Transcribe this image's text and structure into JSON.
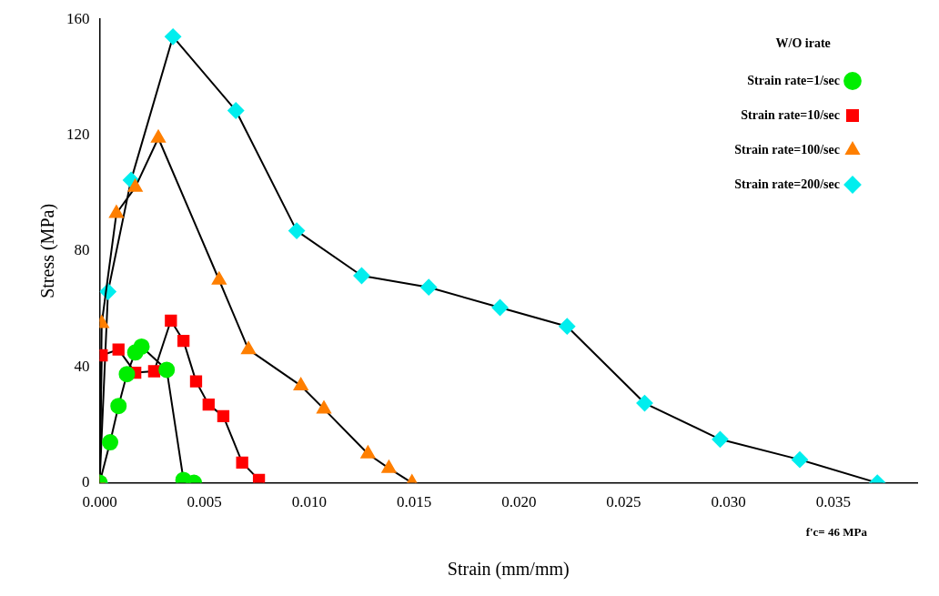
{
  "chart_data": {
    "type": "line",
    "xlabel": "Strain (mm/mm)",
    "ylabel": "Stress (MPa)",
    "legend_title": "W/O irate",
    "legend": "top right",
    "grid": false,
    "line_style": "solid",
    "xlim": [
      0,
      0.039
    ],
    "ylim": [
      0,
      160
    ],
    "xticks": [
      {
        "value": 0,
        "label": "0.000"
      },
      {
        "value": 0.005,
        "label": "0.005"
      },
      {
        "value": 0.01,
        "label": "0.010"
      },
      {
        "value": 0.015,
        "label": "0.015"
      },
      {
        "value": 0.02,
        "label": "0.020"
      },
      {
        "value": 0.025,
        "label": "0.025"
      },
      {
        "value": 0.03,
        "label": "0.030"
      },
      {
        "value": 0.035,
        "label": "0.035"
      }
    ],
    "yticks": [
      0,
      40,
      80,
      120,
      160
    ],
    "annotations": [
      "f'c= 46 MPa"
    ],
    "series": [
      {
        "name": "Strain rate=1/sec",
        "color": "#00ee00",
        "marker": "circle",
        "x": [
          0,
          0.0005,
          0.0009,
          0.0013,
          0.0017,
          0.002,
          0.0032,
          0.004,
          0.0045
        ],
        "values": [
          0,
          14,
          26.5,
          37.5,
          45,
          47,
          39,
          1,
          0
        ]
      },
      {
        "name": "Strain rate=10/sec",
        "color": "#ff0000",
        "marker": "square",
        "x": [
          0,
          0.0001,
          0.0009,
          0.0017,
          0.0026,
          0.0034,
          0.004,
          0.0046,
          0.0052,
          0.0059,
          0.0068,
          0.0076
        ],
        "values": [
          0,
          44,
          46,
          38,
          38.5,
          56,
          49,
          35,
          27,
          23,
          7,
          1
        ]
      },
      {
        "name": "Strain rate=100/sec",
        "color": "#ff7f00",
        "marker": "triangle",
        "x": [
          0,
          0.0001,
          0.0008,
          0.0017,
          0.0028,
          0.0057,
          0.0071,
          0.0096,
          0.0107,
          0.0128,
          0.0138,
          0.0149
        ],
        "values": [
          0,
          55,
          93,
          102,
          119,
          70,
          46,
          33.5,
          25.5,
          10,
          5,
          0
        ]
      },
      {
        "name": "Strain rate=200/sec",
        "color": "#00eeee",
        "marker": "diamond",
        "x": [
          0,
          0.0004,
          0.0015,
          0.0035,
          0.0065,
          0.0094,
          0.0125,
          0.0157,
          0.0191,
          0.0223,
          0.026,
          0.0296,
          0.0334,
          0.0371
        ],
        "values": [
          0,
          66,
          104.5,
          154,
          128.5,
          87,
          71.5,
          67.5,
          60.5,
          54,
          27.5,
          15,
          8,
          0
        ]
      }
    ]
  }
}
